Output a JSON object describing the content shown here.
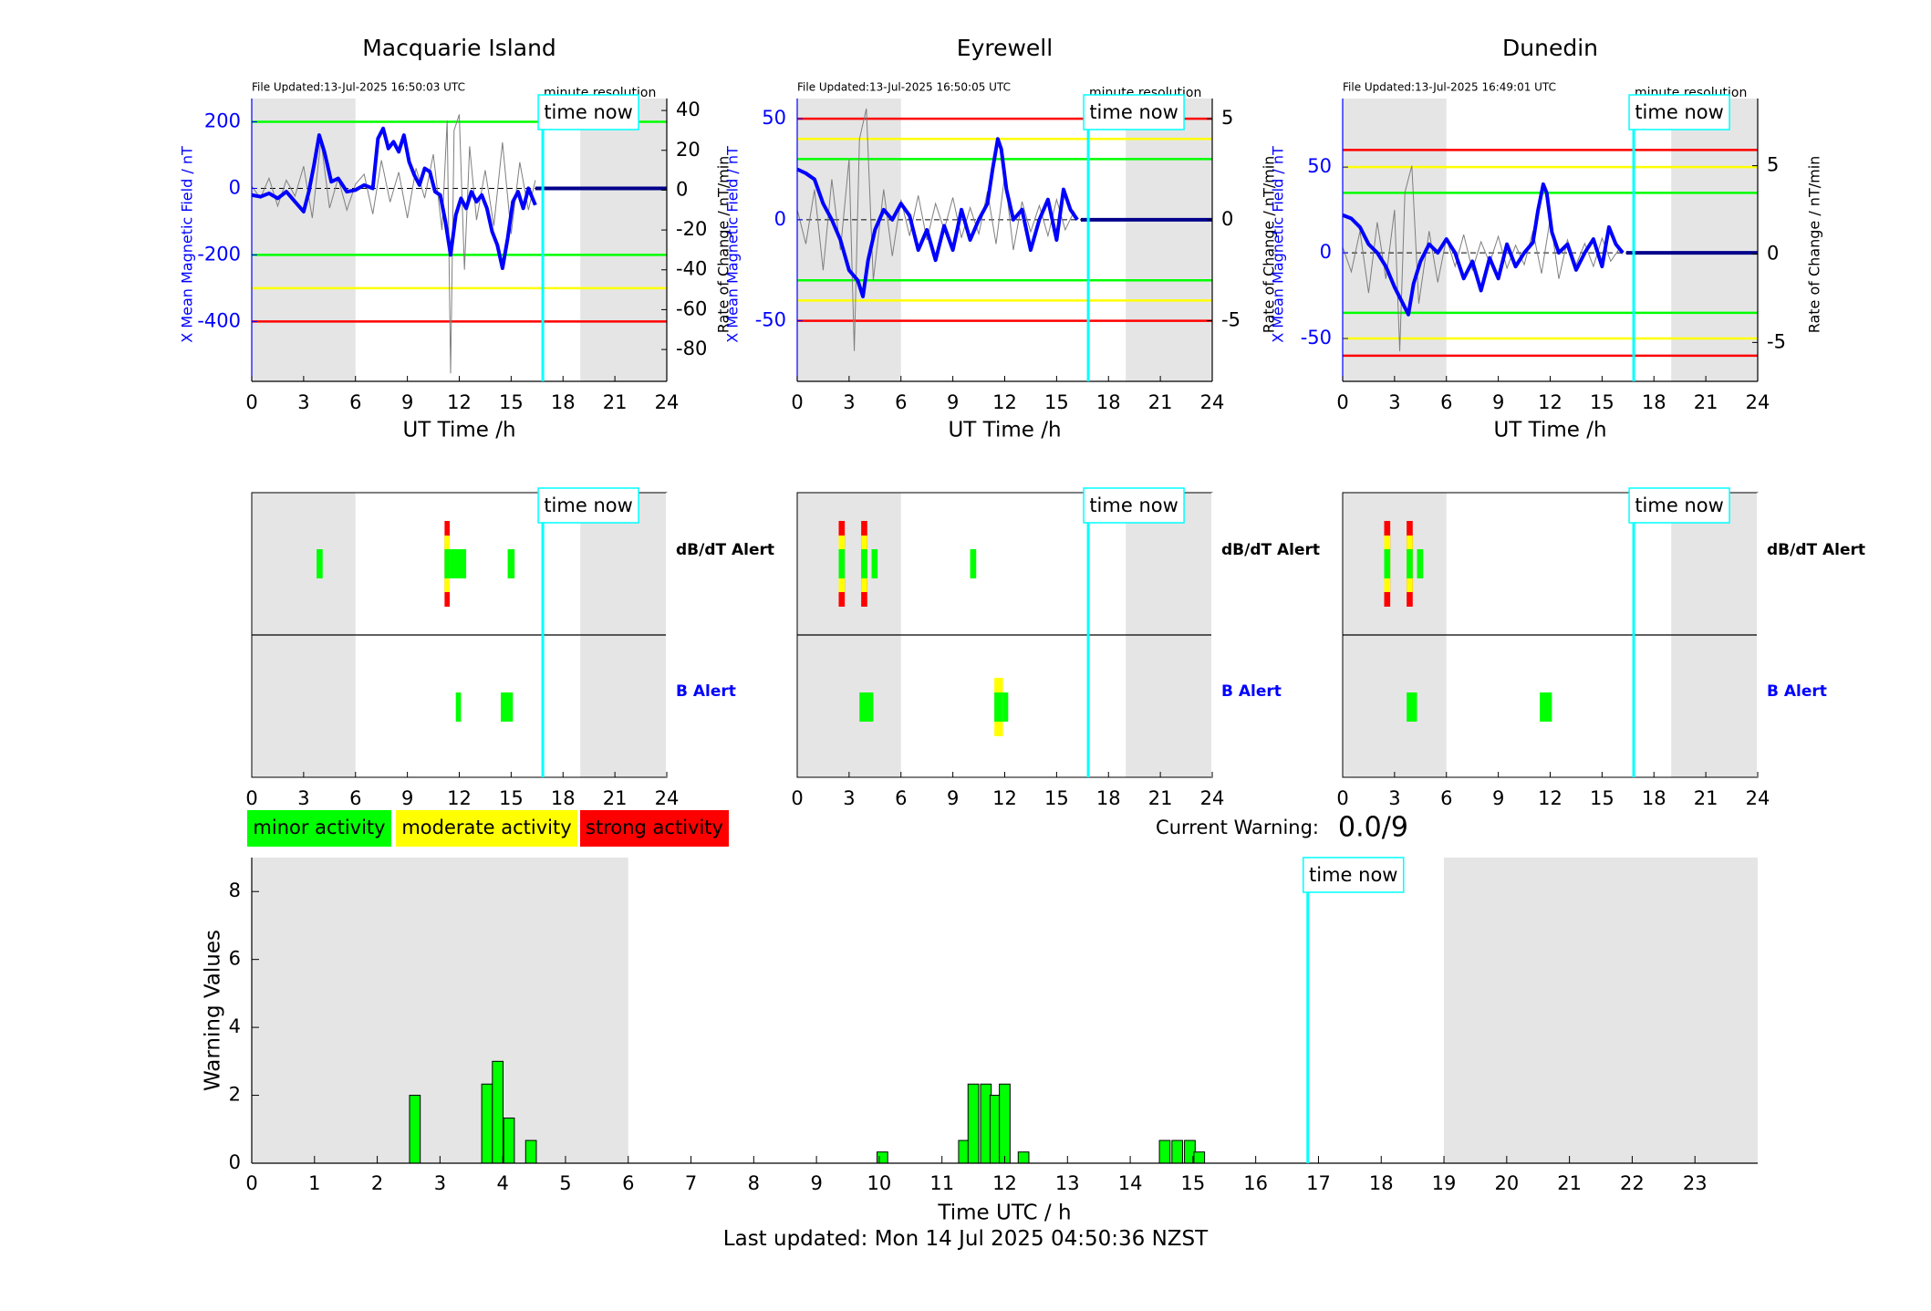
{
  "colors": {
    "minor": "#00ff00",
    "moderate": "#ffff00",
    "strong": "#ff0000",
    "field_line": "#0000ff",
    "rate_line": "#7f7f7f",
    "night_shade": "#e5e5e5",
    "time_now": "#00ffff"
  },
  "time_now_label": "time now",
  "time_now_hour": 16.83,
  "night_shading_hours": [
    [
      0,
      6
    ],
    [
      19,
      24
    ]
  ],
  "stations": [
    {
      "name": "Macquarie Island",
      "file_updated": "File Updated:13-Jul-2025 16:50:03 UTC",
      "resolution_label": "minute resolution",
      "left_axis_label": "X Mean Magnetic Field / nT",
      "right_axis_label": "Rate of Change / nT/min",
      "x_axis_label": "UT Time /h",
      "left_ticks": [
        "200",
        "0",
        "-200",
        "-400"
      ],
      "right_ticks": [
        "40",
        "20",
        "0",
        "-20",
        "-40",
        "-60",
        "-80"
      ],
      "alert_row_labels": {
        "dbdt": "dB/dT Alert",
        "b": "B Alert"
      }
    },
    {
      "name": "Eyrewell",
      "file_updated": "File Updated:13-Jul-2025 16:50:05 UTC",
      "resolution_label": "minute resolution",
      "left_axis_label": "X Mean Magnetic Field / nT",
      "right_axis_label": "Rate of Change / nT/min",
      "x_axis_label": "UT Time /h",
      "left_ticks": [
        "50",
        "0",
        "-50"
      ],
      "right_ticks": [
        "5",
        "0",
        "-5"
      ],
      "alert_row_labels": {
        "dbdt": "dB/dT Alert",
        "b": "B Alert"
      }
    },
    {
      "name": "Dunedin",
      "file_updated": "File Updated:13-Jul-2025 16:49:01 UTC",
      "resolution_label": "minute resolution",
      "left_axis_label": "X Mean Magnetic Field / nT",
      "right_axis_label": "Rate of Change / nT/min",
      "x_axis_label": "UT Time /h",
      "left_ticks": [
        "50",
        "0",
        "-50"
      ],
      "right_ticks": [
        "5",
        "0",
        "-5"
      ],
      "alert_row_labels": {
        "dbdt": "dB/dT Alert",
        "b": "B Alert"
      }
    }
  ],
  "x_ticks_3h": [
    "0",
    "3",
    "6",
    "9",
    "12",
    "15",
    "18",
    "21",
    "24"
  ],
  "legend": {
    "minor": "minor activity",
    "moderate": "moderate activity",
    "strong": "strong activity"
  },
  "current_warning": {
    "label": "Current Warning:",
    "value": "0.0/9"
  },
  "bottom": {
    "ylabel": "Warning Values",
    "xlabel": "Time UTC / h",
    "y_ticks": [
      "0",
      "2",
      "4",
      "6",
      "8"
    ],
    "x_ticks": [
      "0",
      "1",
      "2",
      "3",
      "4",
      "5",
      "6",
      "7",
      "8",
      "9",
      "10",
      "11",
      "12",
      "13",
      "14",
      "15",
      "16",
      "17",
      "18",
      "19",
      "20",
      "21",
      "22",
      "23"
    ]
  },
  "footer": "Last updated: Mon 14 Jul 2025 04:50:36 NZST",
  "chart_data": [
    {
      "type": "line",
      "station": "Macquarie Island",
      "xlim": [
        0,
        24
      ],
      "ylim_left": [
        -580,
        270
      ],
      "ylim_right": [
        -96,
        46
      ],
      "thresholds": [
        {
          "level": "minor",
          "values": [
            200,
            -200
          ]
        },
        {
          "level": "moderate",
          "values": [
            -300
          ]
        },
        {
          "level": "strong",
          "values": [
            -400
          ]
        }
      ],
      "series": [
        {
          "axis": "left",
          "x": [
            0,
            0.5,
            1,
            1.5,
            2,
            2.5,
            3,
            3.3,
            3.6,
            3.9,
            4.2,
            4.6,
            5,
            5.5,
            6,
            6.5,
            7,
            7.3,
            7.6,
            7.9,
            8.2,
            8.5,
            8.8,
            9.1,
            9.4,
            9.7,
            10,
            10.3,
            10.6,
            10.9,
            11.2,
            11.5,
            11.8,
            12.1,
            12.4,
            12.7,
            13,
            13.3,
            13.6,
            13.9,
            14.2,
            14.5,
            14.8,
            15.1,
            15.4,
            15.7,
            16,
            16.4
          ],
          "y": [
            -20,
            -25,
            -15,
            -30,
            -10,
            -40,
            -70,
            -10,
            70,
            160,
            110,
            20,
            30,
            -10,
            -5,
            10,
            0,
            150,
            180,
            120,
            140,
            110,
            160,
            80,
            40,
            10,
            60,
            50,
            -10,
            -20,
            -100,
            -200,
            -80,
            -30,
            -60,
            -10,
            -40,
            -20,
            -60,
            -130,
            -170,
            -240,
            -150,
            -40,
            -10,
            -60,
            0,
            -50
          ]
        },
        {
          "axis": "right",
          "x": [
            0,
            0.5,
            1,
            1.5,
            2,
            2.5,
            3,
            3.5,
            4,
            4.5,
            5,
            5.5,
            6,
            6.5,
            7,
            7.5,
            8,
            8.5,
            9,
            9.5,
            10,
            10.5,
            11,
            11.3,
            11.5,
            11.7,
            12,
            12.3,
            12.6,
            13,
            13.5,
            14,
            14.5,
            15,
            15.5,
            16,
            16.4
          ],
          "y": [
            2,
            -4,
            6,
            -8,
            5,
            -3,
            12,
            -14,
            25,
            -9,
            6,
            -10,
            3,
            8,
            -12,
            15,
            -6,
            9,
            -14,
            11,
            -4,
            18,
            -20,
            35,
            -92,
            30,
            38,
            -40,
            22,
            -15,
            10,
            -18,
            24,
            -22,
            14,
            -10,
            5
          ]
        }
      ]
    },
    {
      "type": "line",
      "station": "Eyrewell",
      "xlim": [
        0,
        24
      ],
      "ylim_left": [
        -80,
        60
      ],
      "ylim_right": [
        -8,
        6
      ],
      "thresholds": [
        {
          "level": "strong",
          "values": [
            50,
            -50
          ]
        },
        {
          "level": "moderate",
          "values": [
            40,
            -40
          ]
        },
        {
          "level": "minor",
          "values": [
            30,
            -30
          ]
        }
      ],
      "series": [
        {
          "axis": "left",
          "x": [
            0,
            0.5,
            1,
            1.5,
            2,
            2.5,
            3,
            3.5,
            3.8,
            4.1,
            4.5,
            5,
            5.5,
            6,
            6.5,
            7,
            7.5,
            8,
            8.5,
            9,
            9.5,
            10,
            10.5,
            11,
            11.3,
            11.6,
            11.8,
            12.1,
            12.5,
            13,
            13.5,
            14,
            14.5,
            15,
            15.4,
            15.8,
            16.2
          ],
          "y": [
            25,
            23,
            20,
            8,
            0,
            -10,
            -25,
            -30,
            -38,
            -20,
            -5,
            5,
            0,
            8,
            2,
            -15,
            -5,
            -20,
            -3,
            -15,
            5,
            -10,
            0,
            8,
            25,
            40,
            35,
            15,
            0,
            5,
            -15,
            0,
            10,
            -10,
            15,
            5,
            0
          ]
        },
        {
          "axis": "right",
          "x": [
            0,
            0.5,
            1,
            1.5,
            2,
            2.5,
            3,
            3.3,
            3.6,
            4,
            4.4,
            5,
            5.5,
            6,
            6.5,
            7,
            7.5,
            8,
            8.5,
            9,
            9.5,
            10,
            10.5,
            11,
            11.5,
            12,
            12.5,
            13,
            13.5,
            14,
            14.5,
            15,
            15.5,
            16,
            16.2
          ],
          "y": [
            0.5,
            -1.2,
            1.5,
            -2.5,
            2,
            -1.5,
            3,
            -6.5,
            4,
            5.5,
            -3,
            1.5,
            -1.8,
            1,
            -0.8,
            1.2,
            -1,
            0.8,
            -0.5,
            1.1,
            -0.9,
            0.6,
            -0.7,
            1.4,
            -1.2,
            2.2,
            -1.5,
            0.9,
            -0.6,
            0.7,
            -0.8,
            1,
            -0.5,
            0.4,
            0
          ]
        }
      ]
    },
    {
      "type": "line",
      "station": "Dunedin",
      "xlim": [
        0,
        24
      ],
      "ylim_left": [
        -75,
        90
      ],
      "ylim_right": [
        -7.2,
        8.8
      ],
      "thresholds": [
        {
          "level": "strong",
          "values": [
            60,
            -60
          ]
        },
        {
          "level": "moderate",
          "values": [
            50,
            -50
          ]
        },
        {
          "level": "minor",
          "values": [
            35,
            -35
          ]
        }
      ],
      "series": [
        {
          "axis": "left",
          "x": [
            0,
            0.5,
            1,
            1.5,
            2,
            2.5,
            3,
            3.5,
            3.8,
            4.1,
            4.5,
            5,
            5.5,
            6,
            6.5,
            7,
            7.5,
            8,
            8.5,
            9,
            9.5,
            10,
            10.5,
            11,
            11.3,
            11.6,
            11.8,
            12.1,
            12.5,
            13,
            13.5,
            14,
            14.5,
            15,
            15.4,
            15.8,
            16.2
          ],
          "y": [
            22,
            20,
            15,
            5,
            0,
            -8,
            -20,
            -30,
            -36,
            -18,
            -5,
            5,
            0,
            8,
            0,
            -15,
            -5,
            -22,
            -3,
            -15,
            5,
            -8,
            0,
            6,
            25,
            40,
            35,
            12,
            0,
            5,
            -10,
            0,
            8,
            -8,
            15,
            5,
            0
          ]
        },
        {
          "axis": "right",
          "x": [
            0,
            0.5,
            1,
            1.5,
            2,
            2.5,
            3,
            3.3,
            3.6,
            4,
            4.4,
            5,
            5.5,
            6,
            6.5,
            7,
            7.5,
            8,
            8.5,
            9,
            9.5,
            10,
            10.5,
            11,
            11.5,
            12,
            12.5,
            13,
            13.5,
            14,
            14.5,
            15,
            15.5,
            16,
            16.2
          ],
          "y": [
            0.4,
            -1,
            1.3,
            -2.2,
            1.8,
            -1.4,
            2.5,
            -5.5,
            3.5,
            5,
            -2.8,
            1.3,
            -1.6,
            0.9,
            -0.7,
            1.1,
            -0.9,
            0.7,
            -0.5,
            1,
            -0.8,
            0.5,
            -0.6,
            1.3,
            -1.1,
            2,
            -1.4,
            0.8,
            -0.6,
            0.6,
            -0.7,
            0.9,
            -0.4,
            0.3,
            0
          ]
        }
      ]
    },
    {
      "type": "bar",
      "name": "dB/dT and B alerts",
      "stations": [
        {
          "station": "Macquarie Island",
          "dbdt": [
            {
              "start": 3.75,
              "end": 4.1,
              "level": "minor"
            },
            {
              "start": 11.15,
              "end": 11.45,
              "level": "strong"
            },
            {
              "start": 11.45,
              "end": 12.4,
              "level": "minor"
            },
            {
              "start": 14.8,
              "end": 15.2,
              "level": "minor"
            }
          ],
          "b": [
            {
              "start": 11.8,
              "end": 12.1,
              "level": "minor"
            },
            {
              "start": 14.4,
              "end": 15.1,
              "level": "minor"
            }
          ]
        },
        {
          "station": "Eyrewell",
          "dbdt": [
            {
              "start": 2.4,
              "end": 2.75,
              "level": "strong"
            },
            {
              "start": 3.7,
              "end": 4.05,
              "level": "strong"
            },
            {
              "start": 4.3,
              "end": 4.65,
              "level": "minor"
            },
            {
              "start": 10.0,
              "end": 10.35,
              "level": "minor"
            }
          ],
          "b": [
            {
              "start": 3.6,
              "end": 4.4,
              "level": "minor"
            },
            {
              "start": 11.4,
              "end": 11.9,
              "level": "moderate"
            },
            {
              "start": 11.9,
              "end": 12.2,
              "level": "minor"
            }
          ]
        },
        {
          "station": "Dunedin",
          "dbdt": [
            {
              "start": 2.4,
              "end": 2.75,
              "level": "strong"
            },
            {
              "start": 3.7,
              "end": 4.05,
              "level": "strong"
            },
            {
              "start": 4.3,
              "end": 4.65,
              "level": "minor"
            }
          ],
          "b": [
            {
              "start": 3.7,
              "end": 4.3,
              "level": "minor"
            },
            {
              "start": 11.4,
              "end": 12.1,
              "level": "minor"
            }
          ]
        }
      ]
    },
    {
      "type": "bar",
      "name": "Warning Values",
      "xlabel": "Time UTC / h",
      "ylabel": "Warning Values",
      "xlim": [
        0,
        24
      ],
      "ylim": [
        0,
        9
      ],
      "bin_width_h": 1,
      "bins": [
        {
          "x": 2.6,
          "y": 2
        },
        {
          "x": 3.75,
          "y": 2.33
        },
        {
          "x": 3.92,
          "y": 3
        },
        {
          "x": 4.1,
          "y": 1.33
        },
        {
          "x": 4.45,
          "y": 0.67
        },
        {
          "x": 10.05,
          "y": 0.33
        },
        {
          "x": 11.35,
          "y": 0.67
        },
        {
          "x": 11.5,
          "y": 2.33
        },
        {
          "x": 11.7,
          "y": 2.33
        },
        {
          "x": 11.85,
          "y": 2
        },
        {
          "x": 12.0,
          "y": 2.33
        },
        {
          "x": 12.3,
          "y": 0.33
        },
        {
          "x": 14.55,
          "y": 0.67
        },
        {
          "x": 14.75,
          "y": 0.67
        },
        {
          "x": 14.95,
          "y": 0.67
        },
        {
          "x": 15.1,
          "y": 0.33
        }
      ]
    }
  ]
}
